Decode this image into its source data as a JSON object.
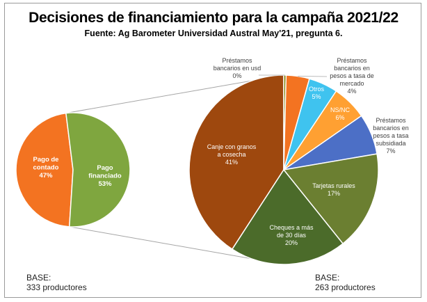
{
  "title": "Decisiones de financiamiento para la campaña 2021/22",
  "subtitle": "Fuente: Ag Barometer Universidad Austral May'21, pregunta 6.",
  "chart_data": [
    {
      "type": "pie",
      "name": "payment",
      "slices": [
        {
          "label": "Pago de contado",
          "lines": [
            "Pago de",
            "contado"
          ],
          "value": 47,
          "pct": "47%",
          "color": "#f37321"
        },
        {
          "label": "Pago financiado",
          "lines": [
            "Pago",
            "financiado"
          ],
          "value": 53,
          "pct": "53%",
          "color": "#7fa63f"
        }
      ],
      "base_title": "BASE:",
      "base_text": "333 productores"
    },
    {
      "type": "pie",
      "name": "financing",
      "slices": [
        {
          "label": "Canje con granos a cosecha",
          "lines": [
            "Canje con granos",
            "a cosecha"
          ],
          "value": 41,
          "pct": "41%",
          "color": "#9e480e"
        },
        {
          "label": "Préstamos bancarios en usd",
          "lines": [
            "Préstamos",
            "bancarios en usd"
          ],
          "value": 0.4,
          "pct": "0%",
          "color": "#7f7f00"
        },
        {
          "label": "Préstamos bancarios en pesos a tasa de mercado",
          "lines": [
            "Préstamos",
            "bancarios en",
            "pesos a tasa de",
            "mercado"
          ],
          "value": 4,
          "pct": "4%",
          "color": "#f37321"
        },
        {
          "label": "Otros",
          "lines": [
            "Otros"
          ],
          "value": 5,
          "pct": "5%",
          "color": "#3fc3ef"
        },
        {
          "label": "NS/NC",
          "lines": [
            "NS/NC"
          ],
          "value": 6,
          "pct": "6%",
          "color": "#ffa032"
        },
        {
          "label": "Préstamos bancarios en pesos a tasa subsidiada",
          "lines": [
            "Préstamos",
            "bancarios en",
            "pesos a tasa",
            "subsidiada"
          ],
          "value": 7,
          "pct": "7%",
          "color": "#4c6fc6"
        },
        {
          "label": "Tarjetas rurales",
          "lines": [
            "Tarjetas rurales"
          ],
          "value": 17,
          "pct": "17%",
          "color": "#6b7f31"
        },
        {
          "label": "Cheques a más de 30 días",
          "lines": [
            "Cheques a más",
            "de 30 días"
          ],
          "value": 20,
          "pct": "20%",
          "color": "#4b6b2a"
        }
      ],
      "base_title": "BASE:",
      "base_text": "263 productores"
    }
  ]
}
